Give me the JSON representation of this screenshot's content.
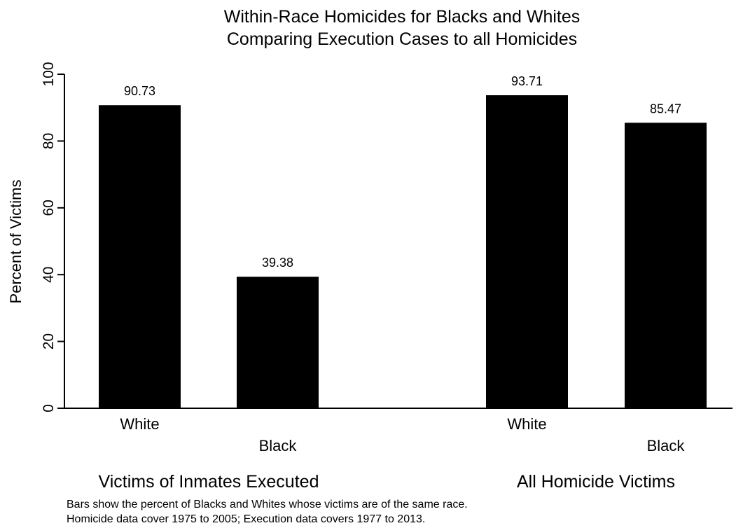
{
  "chart_data": {
    "type": "bar",
    "title_lines": [
      "Within-Race Homicides for Blacks and Whites",
      "Comparing Execution Cases to all Homicides"
    ],
    "ylabel": "Percent of Victims",
    "ylim": [
      0,
      100
    ],
    "yticks": [
      0,
      20,
      40,
      60,
      80,
      100
    ],
    "grid": false,
    "bar_color": "#000000",
    "groups": [
      {
        "label": "Victims of Inmates Executed",
        "bars": [
          {
            "category": "White",
            "value": 90.73,
            "value_label": "90.73"
          },
          {
            "category": "Black",
            "value": 39.38,
            "value_label": "39.38"
          }
        ]
      },
      {
        "label": "All Homicide Victims",
        "bars": [
          {
            "category": "White",
            "value": 93.71,
            "value_label": "93.71"
          },
          {
            "category": "Black",
            "value": 85.47,
            "value_label": "85.47"
          }
        ]
      }
    ],
    "notes": [
      "Bars show the percent of Blacks and Whites whose victims are of the same race.",
      "Homicide data cover 1975 to 2005; Execution data covers 1977 to 2013."
    ]
  }
}
